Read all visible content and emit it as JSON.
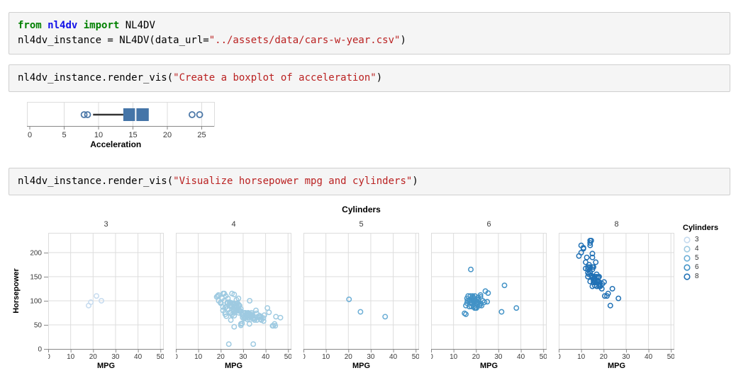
{
  "page": {
    "background": "#ffffff"
  },
  "syntax_colors": {
    "kw": "#008000",
    "mod": "#1010e8",
    "str": "#ba2121",
    "pl": "#000000"
  },
  "cells": [
    {
      "name": "import-cell",
      "lines": [
        [
          [
            "kw",
            "from"
          ],
          [
            "pl",
            " "
          ],
          [
            "mod",
            "nl4dv"
          ],
          [
            "pl",
            " "
          ],
          [
            "kw",
            "import"
          ],
          [
            "pl",
            " NL4DV"
          ]
        ],
        [
          [
            "pl",
            "nl4dv_instance = NL4DV(data_url="
          ],
          [
            "str",
            "\"../assets/data/cars-w-year.csv\""
          ],
          [
            "pl",
            ")"
          ]
        ]
      ]
    },
    {
      "name": "boxplot-cell",
      "lines": [
        [
          [
            "pl",
            "nl4dv_instance.render_vis("
          ],
          [
            "str",
            "\"Create a boxplot of acceleration\""
          ],
          [
            "pl",
            ")"
          ]
        ]
      ]
    },
    {
      "name": "scatter-cell",
      "lines": [
        [
          [
            "pl",
            "nl4dv_instance.render_vis("
          ],
          [
            "str",
            "\"Visualize horsepower mpg and cylinders\""
          ],
          [
            "pl",
            ")"
          ]
        ]
      ]
    }
  ],
  "chart_data": [
    {
      "type": "boxplot",
      "orientation": "horizontal",
      "xlabel": "Acceleration",
      "x_ticks": [
        0,
        5,
        10,
        15,
        20,
        25
      ],
      "xlim": [
        0,
        26.8
      ],
      "stats": {
        "whisker_low": 9.2,
        "q1": 13.6,
        "median": 15.4,
        "q3": 17.3,
        "whisker_high": 17.3
      },
      "outliers": [
        7.9,
        8.4,
        23.6,
        24.7
      ],
      "colors": {
        "box": "#4575a8",
        "whisker": "#333333",
        "median": "#ffffff",
        "outlier": "#4c78a8"
      },
      "grid": true
    },
    {
      "type": "scatter",
      "title": "Cylinders",
      "xlabel": "MPG",
      "ylabel": "Horsepower",
      "xlim": [
        0,
        51.5
      ],
      "ylim": [
        0,
        241
      ],
      "x_ticks": [
        0,
        10,
        20,
        30,
        40,
        50
      ],
      "y_ticks": [
        0,
        50,
        100,
        150,
        200
      ],
      "grid": true,
      "legend": {
        "title": "Cylinders",
        "position": "right"
      },
      "series": [
        {
          "name": "3",
          "color": "#c6dbef",
          "points": [
            [
              18,
              90
            ],
            [
              19,
              97
            ],
            [
              21.5,
              110
            ],
            [
              23.7,
              100
            ]
          ]
        },
        {
          "name": "4",
          "color": "#9ecae1",
          "points": [
            [
              24,
              95
            ],
            [
              27,
              88
            ],
            [
              27.5,
              88
            ],
            [
              26,
              46
            ],
            [
              25,
              87
            ],
            [
              24,
              90
            ],
            [
              25,
              95
            ],
            [
              26,
              113
            ],
            [
              28,
              90
            ],
            [
              25.5,
              95
            ],
            [
              31,
              65
            ],
            [
              32,
              65
            ],
            [
              24.5,
              96
            ],
            [
              26,
              69
            ],
            [
              22,
              86
            ],
            [
              28,
              92
            ],
            [
              23,
              97
            ],
            [
              28.5,
              80
            ],
            [
              27,
              102
            ],
            [
              22,
              76
            ],
            [
              21,
              87
            ],
            [
              24,
              97
            ],
            [
              26,
              93
            ],
            [
              26.5,
              90
            ],
            [
              29,
              49
            ],
            [
              24,
              75
            ],
            [
              20,
              95
            ],
            [
              19,
              112
            ],
            [
              25,
              115
            ],
            [
              29,
              83
            ],
            [
              32,
              61
            ],
            [
              28,
              75
            ],
            [
              24.5,
              74
            ],
            [
              31,
              67
            ],
            [
              26,
              80
            ],
            [
              25,
              71
            ],
            [
              22,
              72
            ],
            [
              24.2,
              89
            ],
            [
              29,
              52
            ],
            [
              33,
              61
            ],
            [
              24.5,
              60
            ],
            [
              29.5,
              53
            ],
            [
              31,
              75
            ],
            [
              32,
              71
            ],
            [
              22.5,
              68
            ],
            [
              23,
              95
            ],
            [
              20,
              97
            ],
            [
              21.5,
              100
            ],
            [
              22.5,
              88
            ],
            [
              26,
              75
            ],
            [
              30,
              70
            ],
            [
              30.5,
              63
            ],
            [
              33.5,
              65
            ],
            [
              29,
              78
            ],
            [
              26.5,
              78
            ],
            [
              25,
              89
            ],
            [
              23,
              83
            ],
            [
              21,
              80
            ],
            [
              27,
              80
            ],
            [
              25.5,
              82
            ],
            [
              29.5,
              71
            ],
            [
              30,
              75
            ],
            [
              28.4,
              90
            ],
            [
              30.9,
              75
            ],
            [
              33.8,
              67
            ],
            [
              43.1,
              48
            ],
            [
              36.1,
              66
            ],
            [
              32.8,
              52
            ],
            [
              39.4,
              70
            ],
            [
              36.1,
              60
            ],
            [
              29.8,
              65
            ],
            [
              31.3,
              71
            ],
            [
              37.3,
              69
            ],
            [
              44.3,
              48
            ],
            [
              43.4,
              48
            ],
            [
              34.1,
              68
            ],
            [
              35.7,
              80
            ],
            [
              27.4,
              80
            ],
            [
              29.9,
              65
            ],
            [
              33.7,
              75
            ],
            [
              32.4,
              74
            ],
            [
              32.9,
              100
            ],
            [
              31.6,
              74
            ],
            [
              28.1,
              80
            ],
            [
              25.8,
              95
            ],
            [
              39.1,
              58
            ],
            [
              39,
              64
            ],
            [
              35.1,
              60
            ],
            [
              32.1,
              70
            ],
            [
              37.2,
              65
            ],
            [
              37.7,
              62
            ],
            [
              34.7,
              63
            ],
            [
              34.4,
              65
            ],
            [
              46.6,
              65
            ],
            [
              40.8,
              85
            ],
            [
              44.6,
              67
            ],
            [
              33.8,
              67
            ],
            [
              34.1,
              70
            ],
            [
              38.1,
              60
            ],
            [
              41.5,
              76
            ],
            [
              44,
              52
            ],
            [
              37,
              68
            ],
            [
              32,
              68
            ],
            [
              36,
              74
            ],
            [
              38,
              67
            ],
            [
              31.9,
              71
            ],
            [
              34.2,
              70
            ],
            [
              23.9,
              90
            ],
            [
              25.1,
              88
            ],
            [
              27.9,
              105
            ],
            [
              32.2,
              75
            ],
            [
              28,
              79
            ],
            [
              21.1,
              115
            ],
            [
              21.6,
              115
            ],
            [
              19.1,
              100
            ],
            [
              20.6,
              105
            ],
            [
              23.2,
              105
            ],
            [
              18.6,
              110
            ],
            [
              18.2,
              108
            ],
            [
              22.3,
              110
            ],
            [
              26.4,
              84
            ],
            [
              28.8,
              78
            ],
            [
              35,
              63
            ],
            [
              33.5,
              72
            ],
            [
              30.4,
              67
            ],
            [
              27.5,
              95
            ],
            [
              23.6,
              10
            ],
            [
              34.5,
              10
            ]
          ]
        },
        {
          "name": "5",
          "color": "#6baed6",
          "points": [
            [
              20.3,
              103
            ],
            [
              25.4,
              77
            ],
            [
              36.4,
              67
            ]
          ]
        },
        {
          "name": "6",
          "color": "#4292c6",
          "points": [
            [
              17.7,
              165
            ],
            [
              32.7,
              132
            ],
            [
              38,
              85
            ],
            [
              31.4,
              77
            ],
            [
              14.9,
              74
            ],
            [
              15.5,
              72
            ],
            [
              18,
              97
            ],
            [
              19,
              88
            ],
            [
              16,
              95
            ],
            [
              17,
              100
            ],
            [
              19,
              105
            ],
            [
              18,
              105
            ],
            [
              18,
              88
            ],
            [
              17.5,
              110
            ],
            [
              18.5,
              110
            ],
            [
              16,
              105
            ],
            [
              15.5,
              90
            ],
            [
              20,
              95
            ],
            [
              21,
              102
            ],
            [
              20,
              100
            ],
            [
              19.5,
              110
            ],
            [
              22,
              95
            ],
            [
              22,
              108
            ],
            [
              21,
              107
            ],
            [
              20.5,
              95
            ],
            [
              22.5,
              90
            ],
            [
              23,
              100
            ],
            [
              24.2,
              120
            ],
            [
              25.4,
              116
            ],
            [
              22,
              112
            ],
            [
              20.2,
              85
            ],
            [
              19.4,
              85
            ],
            [
              20.5,
              98
            ],
            [
              20.2,
              95
            ],
            [
              25,
              98
            ],
            [
              16.2,
              100
            ],
            [
              17.6,
              96
            ],
            [
              18.1,
              94
            ],
            [
              18.6,
              107
            ],
            [
              16.5,
              110
            ],
            [
              19.8,
              85
            ],
            [
              20.8,
              97
            ],
            [
              21.9,
              92
            ],
            [
              23.8,
              97
            ],
            [
              17,
              88
            ],
            [
              18.2,
              100
            ],
            [
              19.2,
              97
            ],
            [
              21.5,
              90
            ]
          ]
        },
        {
          "name": "8",
          "color": "#2171b5",
          "points": [
            [
              18,
              130
            ],
            [
              15,
              165
            ],
            [
              18,
              150
            ],
            [
              16,
              150
            ],
            [
              17,
              140
            ],
            [
              15,
              198
            ],
            [
              14,
              220
            ],
            [
              14,
              215
            ],
            [
              14,
              225
            ],
            [
              15,
              190
            ],
            [
              15,
              170
            ],
            [
              14,
              160
            ],
            [
              15,
              150
            ],
            [
              14.5,
              225
            ],
            [
              10,
              215
            ],
            [
              10,
              200
            ],
            [
              11,
              210
            ],
            [
              9,
              193
            ],
            [
              11,
              208
            ],
            [
              12,
              180
            ],
            [
              13,
              170
            ],
            [
              13,
              165
            ],
            [
              13,
              150
            ],
            [
              12.5,
              190
            ],
            [
              13.5,
              175
            ],
            [
              14,
              170
            ],
            [
              16,
              140
            ],
            [
              15.5,
              145
            ],
            [
              16,
              150
            ],
            [
              14.5,
              153
            ],
            [
              17,
              150
            ],
            [
              16,
              145
            ],
            [
              15,
              148
            ],
            [
              14,
              140
            ],
            [
              17,
              130
            ],
            [
              17.5,
              140
            ],
            [
              16,
              132
            ],
            [
              15,
              130
            ],
            [
              15.5,
              138
            ],
            [
              16.5,
              138
            ],
            [
              13,
              158
            ],
            [
              12,
              167
            ],
            [
              13.5,
              155
            ],
            [
              18.5,
              130
            ],
            [
              17.6,
              149
            ],
            [
              18.2,
              135
            ],
            [
              16.9,
              155
            ],
            [
              15.5,
              142
            ],
            [
              19.2,
              125
            ],
            [
              20.2,
              139
            ],
            [
              18.1,
              139
            ],
            [
              19.4,
              135
            ],
            [
              23.9,
              125
            ],
            [
              26.6,
              105
            ],
            [
              20.5,
              110
            ],
            [
              21.5,
              110
            ],
            [
              23,
              90
            ],
            [
              16.5,
              180
            ],
            [
              15.5,
              170
            ],
            [
              22,
              115
            ]
          ]
        }
      ]
    }
  ]
}
